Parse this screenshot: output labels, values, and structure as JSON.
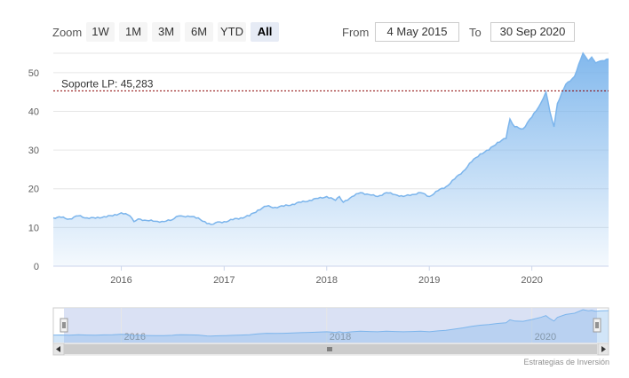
{
  "rangeSelector": {
    "zoom_label": "Zoom",
    "buttons": [
      "1W",
      "1M",
      "3M",
      "6M",
      "YTD",
      "All"
    ],
    "selected": "All",
    "from_label": "From",
    "from_value": "4 May 2015",
    "to_label": "To",
    "to_value": "30 Sep 2020"
  },
  "credits": "Estrategias de Inversión",
  "colors": {
    "line": "#7cb5ec",
    "area_top": "#7cb5ec",
    "plot_line": "#8b0000",
    "navigator_mask": "#d4dcf2"
  },
  "chart_data": {
    "type": "area",
    "title": "",
    "xlabel": "",
    "ylabel": "",
    "x_range": [
      "2015-05-04",
      "2020-09-30"
    ],
    "ylim": [
      0,
      55
    ],
    "y_ticks": [
      0,
      10,
      20,
      30,
      40,
      50
    ],
    "x_tick_labels": [
      "2016",
      "2017",
      "2018",
      "2019",
      "2020"
    ],
    "grid": true,
    "plot_line": {
      "value": 45.283,
      "label": "Soporte LP: 45,283"
    },
    "series": [
      {
        "x": [
          "2015-05-04",
          "2015-06-01",
          "2015-07-01",
          "2015-08-01",
          "2015-09-01",
          "2015-10-01",
          "2015-11-01",
          "2015-12-01",
          "2016-01-01",
          "2016-02-01",
          "2016-02-15",
          "2016-03-01",
          "2016-04-01",
          "2016-05-01",
          "2016-06-01",
          "2016-07-01",
          "2016-07-15",
          "2016-08-01",
          "2016-09-01",
          "2016-10-01",
          "2016-11-01",
          "2016-11-15",
          "2016-12-01",
          "2017-01-01",
          "2017-02-01",
          "2017-03-01",
          "2017-04-01",
          "2017-05-01",
          "2017-06-01",
          "2017-07-01",
          "2017-08-01",
          "2017-09-01",
          "2017-10-01",
          "2017-11-01",
          "2017-12-01",
          "2018-01-01",
          "2018-02-01",
          "2018-02-15",
          "2018-03-01",
          "2018-04-01",
          "2018-05-01",
          "2018-06-01",
          "2018-07-01",
          "2018-08-01",
          "2018-09-01",
          "2018-10-01",
          "2018-11-01",
          "2018-12-01",
          "2019-01-01",
          "2019-02-01",
          "2019-03-01",
          "2019-04-01",
          "2019-05-01",
          "2019-06-01",
          "2019-07-01",
          "2019-08-01",
          "2019-09-01",
          "2019-10-01",
          "2019-10-15",
          "2019-11-01",
          "2019-12-01",
          "2020-01-01",
          "2020-02-01",
          "2020-02-20",
          "2020-03-05",
          "2020-03-20",
          "2020-04-01",
          "2020-05-01",
          "2020-06-01",
          "2020-07-01",
          "2020-07-20",
          "2020-08-01",
          "2020-08-15",
          "2020-09-01",
          "2020-09-30"
        ],
        "values": [
          12.5,
          12.6,
          12.2,
          13.0,
          12.5,
          12.4,
          12.8,
          13.0,
          13.8,
          13.0,
          11.5,
          12.2,
          11.8,
          11.6,
          11.5,
          12.0,
          12.8,
          13.0,
          12.8,
          12.5,
          11.0,
          10.8,
          11.2,
          11.5,
          12.0,
          12.5,
          13.0,
          14.5,
          15.5,
          15.2,
          15.5,
          16.0,
          16.5,
          17.0,
          17.5,
          18.0,
          17.0,
          18.0,
          16.5,
          18.0,
          19.0,
          18.5,
          18.0,
          19.0,
          18.5,
          18.0,
          18.5,
          19.0,
          18.0,
          19.5,
          20.5,
          22.5,
          24.5,
          27.0,
          29.0,
          30.0,
          32.0,
          33.0,
          38.0,
          36.0,
          35.5,
          38.5,
          42.0,
          45.0,
          40.0,
          36.0,
          42.0,
          47.0,
          49.0,
          55.0,
          53.0,
          54.0,
          52.5,
          53.0,
          53.5
        ]
      }
    ],
    "navigator": {
      "x_tick_labels": [
        "2016",
        "2018",
        "2020"
      ]
    }
  }
}
